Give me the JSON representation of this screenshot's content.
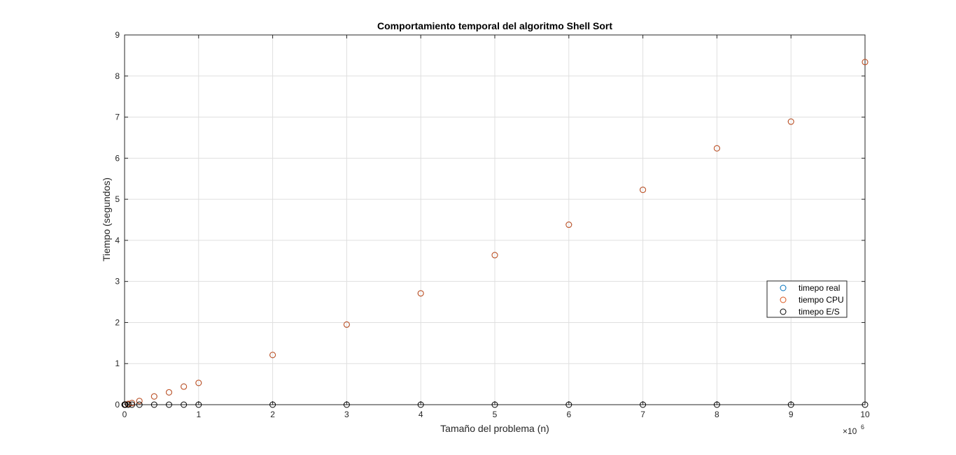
{
  "chart_data": {
    "type": "scatter",
    "title": "Comportamiento temporal del algoritmo Shell Sort",
    "xlabel": "Tamaño del problema (n)",
    "ylabel": "Tiempo (segundos)",
    "x_exponent_label": "×10",
    "x_exponent_power": "6",
    "xlim": [
      0,
      10
    ],
    "ylim": [
      0,
      9
    ],
    "xticks": [
      "0",
      "1",
      "2",
      "3",
      "4",
      "5",
      "6",
      "7",
      "8",
      "9",
      "10"
    ],
    "yticks": [
      "0",
      "1",
      "2",
      "3",
      "4",
      "5",
      "6",
      "7",
      "8",
      "9"
    ],
    "grid": true,
    "legend_position": "right",
    "x": [
      0.001,
      0.005,
      0.01,
      0.05,
      0.1,
      0.2,
      0.4,
      0.6,
      0.8,
      1,
      2,
      3,
      4,
      5,
      6,
      7,
      8,
      9,
      10
    ],
    "series": [
      {
        "name": "timepo real",
        "color": "#0072BD",
        "values": [
          0.0005,
          0.002,
          0.004,
          0.02,
          0.04,
          0.09,
          0.2,
          0.3,
          0.44,
          0.53,
          1.21,
          1.95,
          2.71,
          3.64,
          4.38,
          5.23,
          6.24,
          6.89,
          8.34
        ]
      },
      {
        "name": "tiempo CPU",
        "color": "#D95319",
        "values": [
          0.0005,
          0.002,
          0.004,
          0.02,
          0.04,
          0.09,
          0.2,
          0.3,
          0.44,
          0.53,
          1.21,
          1.95,
          2.71,
          3.64,
          4.38,
          5.23,
          6.24,
          6.89,
          8.34
        ]
      },
      {
        "name": "timepo E/S",
        "color": "#000000",
        "values": [
          0,
          0,
          0,
          0,
          0,
          0,
          0,
          0,
          0,
          0,
          0,
          0,
          0,
          0,
          0,
          0,
          0,
          0,
          0
        ]
      }
    ]
  }
}
